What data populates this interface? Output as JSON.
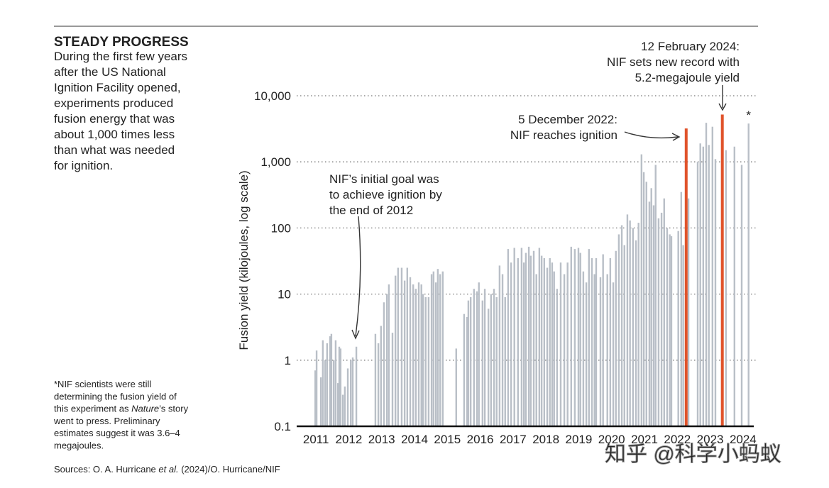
{
  "chart_data": {
    "type": "bar",
    "log_y": true,
    "grid": true,
    "title": "STEADY PROGRESS",
    "description": [
      "During the first few years",
      "after the US National",
      "Ignition Facility opened,",
      "experiments produced",
      "fusion energy that was",
      "about 1,000 times less",
      "than what was needed",
      "for ignition."
    ],
    "ylabel": "Fusion yield (kilojoules, log scale)",
    "xlim": [
      2011,
      2025
    ],
    "xticks": [
      {
        "value": 2011.5,
        "label": "2011"
      },
      {
        "value": 2012.5,
        "label": "2012"
      },
      {
        "value": 2013.5,
        "label": "2013"
      },
      {
        "value": 2014.5,
        "label": "2014"
      },
      {
        "value": 2015.5,
        "label": "2015"
      },
      {
        "value": 2016.5,
        "label": "2016"
      },
      {
        "value": 2017.5,
        "label": "2017"
      },
      {
        "value": 2018.5,
        "label": "2018"
      },
      {
        "value": 2019.5,
        "label": "2019"
      },
      {
        "value": 2020.5,
        "label": "2020"
      },
      {
        "value": 2021.5,
        "label": "2021"
      },
      {
        "value": 2022.5,
        "label": "2022"
      },
      {
        "value": 2023.5,
        "label": "2023"
      },
      {
        "value": 2024.5,
        "label": "2024"
      }
    ],
    "ylim": [
      0.1,
      10000
    ],
    "yticks": [
      0.1,
      1,
      10,
      100,
      {
        "value": 1000,
        "label": "1,000"
      },
      {
        "value": 10000,
        "label": "10,000"
      }
    ],
    "series": [
      {
        "color": "#b9bfc7",
        "x": [
          2011.48,
          2011.52,
          2011.65,
          2011.71,
          2011.78,
          2011.84,
          2011.93,
          2011.97,
          2012.04,
          2012.1,
          2012.17,
          2012.21,
          2012.25,
          2012.32,
          2012.38,
          2012.47,
          2012.56,
          2012.62,
          2012.73,
          2013.31,
          2013.4,
          2013.48,
          2013.57,
          2013.66,
          2013.72,
          2013.83,
          2013.92,
          2014.0,
          2014.11,
          2014.2,
          2014.28,
          2014.37,
          2014.46,
          2014.54,
          2014.63,
          2014.71,
          2014.76,
          2014.84,
          2014.93,
          2015.02,
          2015.08,
          2015.15,
          2015.21,
          2015.28,
          2015.36,
          2015.77,
          2016.01,
          2016.1,
          2016.14,
          2016.21,
          2016.31,
          2016.4,
          2016.46,
          2016.57,
          2016.64,
          2016.75,
          2016.83,
          2016.92,
          2017.0,
          2017.09,
          2017.18,
          2017.26,
          2017.35,
          2017.44,
          2017.54,
          2017.65,
          2017.76,
          2017.83,
          2017.89,
          2017.98,
          2018.04,
          2018.13,
          2018.21,
          2018.3,
          2018.37,
          2018.45,
          2018.54,
          2018.62,
          2018.69,
          2018.75,
          2018.84,
          2018.95,
          2019.06,
          2019.16,
          2019.27,
          2019.38,
          2019.49,
          2019.55,
          2019.64,
          2019.73,
          2019.81,
          2019.9,
          2019.98,
          2020.03,
          2020.16,
          2020.24,
          2020.37,
          2020.46,
          2020.55,
          2020.63,
          2020.72,
          2020.81,
          2020.89,
          2020.98,
          2021.06,
          2021.15,
          2021.24,
          2021.32,
          2021.41,
          2021.48,
          2021.56,
          2021.65,
          2021.71,
          2021.78,
          2021.84,
          2021.93,
          2022.02,
          2022.1,
          2022.19,
          2022.27,
          2022.32,
          2022.53,
          2022.62,
          2022.68,
          2022.84,
          2023.12,
          2023.2,
          2023.29,
          2023.38,
          2023.46,
          2023.57,
          2023.66,
          2023.98,
          2024.24,
          2024.46,
          2024.67
        ],
        "values": [
          0.7,
          1.4,
          0.55,
          2.0,
          1.0,
          1.8,
          2.3,
          2.5,
          1.0,
          2.0,
          0.45,
          1.6,
          1.5,
          0.3,
          0.4,
          0.75,
          1.0,
          1.1,
          1.6,
          2.5,
          1.8,
          3.3,
          7.5,
          10,
          14,
          2.6,
          19,
          25,
          25,
          16,
          25,
          18,
          14,
          12,
          15,
          14,
          10,
          9,
          9,
          20,
          22,
          15,
          24,
          20,
          22,
          1.5,
          5,
          4.5,
          8,
          9,
          12,
          11,
          15,
          8,
          12,
          6,
          10,
          12,
          9,
          27,
          20,
          9,
          48,
          30,
          50,
          35,
          50,
          30,
          42,
          52,
          38,
          45,
          20,
          50,
          38,
          35,
          25,
          35,
          30,
          22,
          12,
          30,
          20,
          30,
          52,
          48,
          50,
          42,
          22,
          15,
          48,
          35,
          20,
          35,
          18,
          40,
          20,
          35,
          15,
          45,
          80,
          110,
          55,
          160,
          130,
          100,
          65,
          120,
          1300,
          700,
          500,
          250,
          400,
          220,
          900,
          140,
          170,
          280,
          100,
          80,
          75,
          90,
          350,
          55,
          280,
          1000,
          1900,
          1700,
          3900,
          1800,
          3400,
          1100,
          1500,
          1700,
          900,
          3800
        ]
      },
      {
        "color": "#e0532b",
        "x": [
          2022.77,
          2023.87
        ],
        "values": [
          3200,
          5200
        ]
      }
    ],
    "asterisk": "*",
    "annotations": [
      {
        "lines": [
          "12 February 2024:",
          "NIF sets new record with",
          "5.2-megajoule yield"
        ]
      },
      {
        "lines": [
          "5 December 2022:",
          "NIF reaches ignition"
        ]
      },
      {
        "lines": [
          "NIF’s initial goal was",
          "to achieve ignition by",
          "the end of 2012"
        ]
      }
    ],
    "footnote": [
      [
        "*NIF scientists were still"
      ],
      [
        "determining the fusion yield of"
      ],
      [
        "this experiment as ",
        "Nature",
        "’s story"
      ],
      [
        "went to press. Preliminary"
      ],
      [
        "estimates suggest it was 3.6–4"
      ],
      [
        "megajoules."
      ]
    ],
    "source": [
      "Sources: O. A. Hurricane ",
      "et al.",
      " (2024)/O. Hurricane/NIF"
    ],
    "watermark": "知乎 @科学小蚂蚁"
  }
}
